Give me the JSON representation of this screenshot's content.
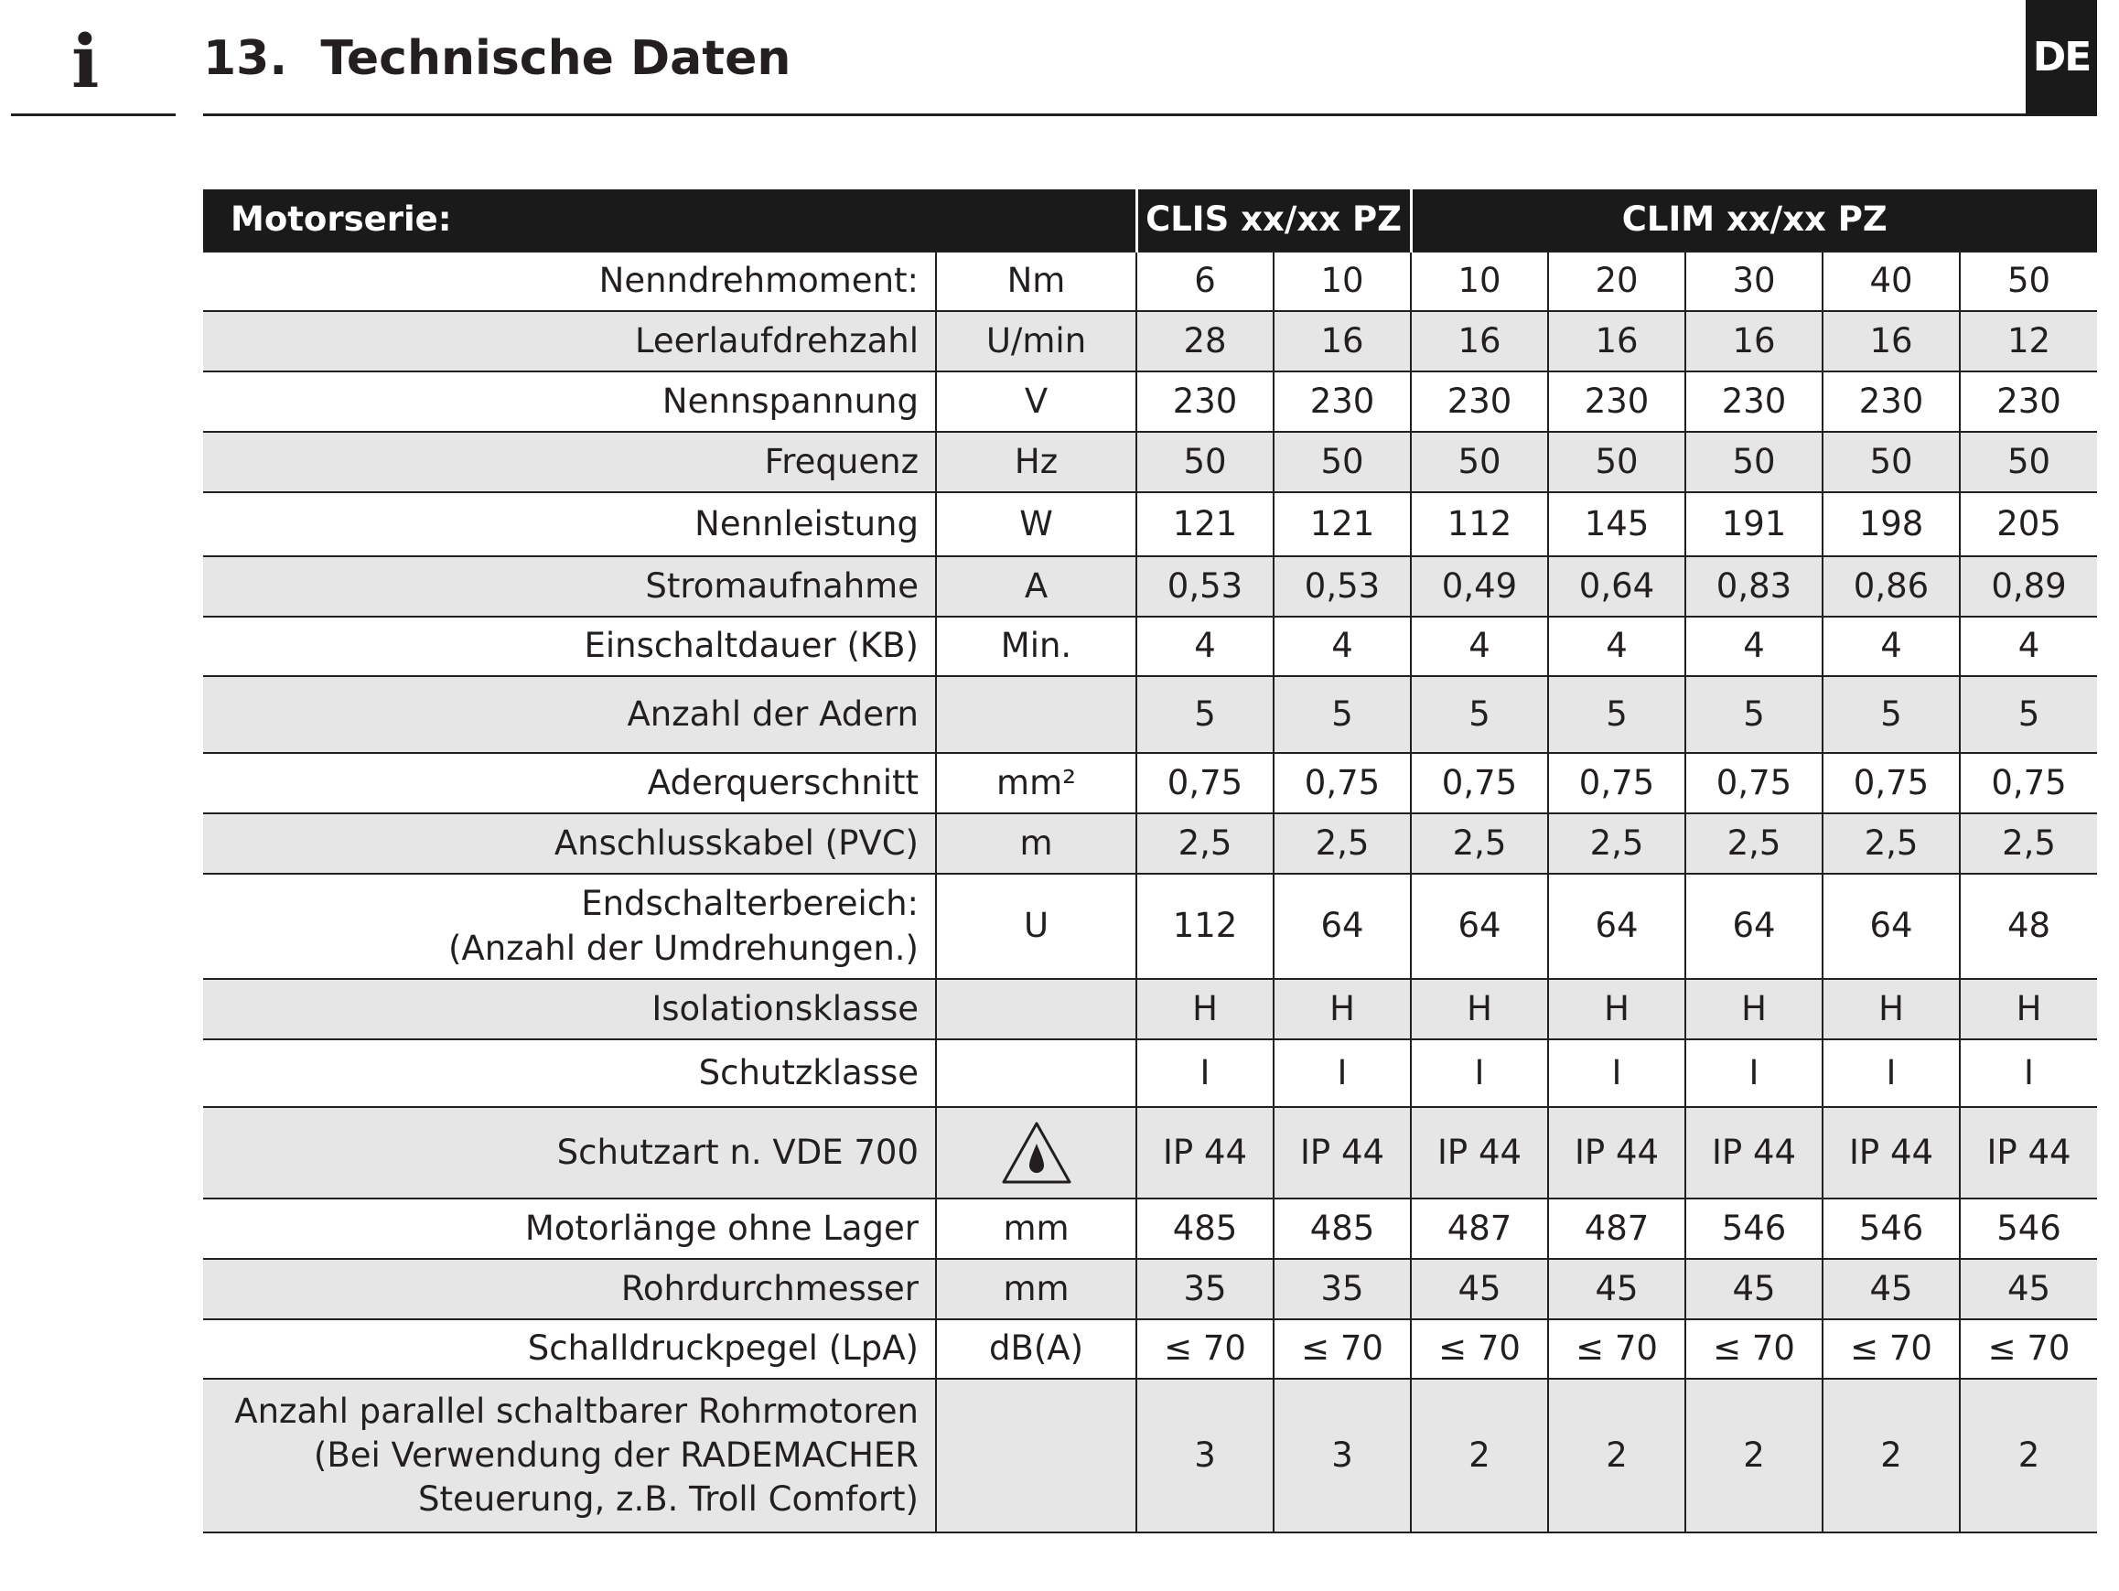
{
  "header": {
    "icon": "i",
    "title": "13.  Technische Daten",
    "language": "DE"
  },
  "table": {
    "header": [
      "Motorserie:",
      "CLIS xx/xx PZ",
      "CLIM xx/xx PZ"
    ],
    "rows": [
      [
        "Nenndrehmoment:",
        "Nm",
        "6",
        "10",
        "10",
        "20",
        "30",
        "40",
        "50"
      ],
      [
        "Leerlaufdrehzahl",
        "U/min",
        "28",
        "16",
        "16",
        "16",
        "16",
        "16",
        "12"
      ],
      [
        "Nennspannung",
        "V",
        "230",
        "230",
        "230",
        "230",
        "230",
        "230",
        "230"
      ],
      [
        "Frequenz",
        "Hz",
        "50",
        "50",
        "50",
        "50",
        "50",
        "50",
        "50"
      ],
      [
        "Nennleistung",
        "W",
        "121",
        "121",
        "112",
        "145",
        "191",
        "198",
        "205"
      ],
      [
        "Stromaufnahme",
        "A",
        "0,53",
        "0,53",
        "0,49",
        "0,64",
        "0,83",
        "0,86",
        "0,89"
      ],
      [
        "Einschaltdauer (KB)",
        "Min.",
        "4",
        "4",
        "4",
        "4",
        "4",
        "4",
        "4"
      ],
      [
        "Anzahl der Adern",
        null,
        "5",
        "5",
        "5",
        "5",
        "5",
        "5",
        "5"
      ],
      [
        "Aderquerschnitt",
        "mm²",
        "0,75",
        "0,75",
        "0,75",
        "0,75",
        "0,75",
        "0,75",
        "0,75"
      ],
      [
        "Anschlusskabel (PVC)",
        "m",
        "2,5",
        "2,5",
        "2,5",
        "2,5",
        "2,5",
        "2,5",
        "2,5"
      ],
      [
        "Endschalterbereich:\n(Anzahl der Umdrehungen.)",
        "U",
        "112",
        "64",
        "64",
        "64",
        "64",
        "64",
        "48"
      ],
      [
        "Isolationsklasse",
        null,
        "H",
        "H",
        "H",
        "H",
        "H",
        "H",
        "H"
      ],
      [
        "Schutzklasse",
        null,
        "I",
        "I",
        "I",
        "I",
        "I",
        "I",
        "I"
      ],
      [
        "Schutzart n. VDE 700",
        null,
        "IP 44",
        "IP 44",
        "IP 44",
        "IP 44",
        "IP 44",
        "IP 44",
        "IP 44"
      ],
      [
        "Motorlänge ohne Lager",
        "mm",
        "485",
        "485",
        "487",
        "487",
        "546",
        "546",
        "546"
      ],
      [
        "Rohrdurchmesser",
        "mm",
        "35",
        "35",
        "45",
        "45",
        "45",
        "45",
        "45"
      ],
      [
        "Schalldruckpegel (LpA)",
        "dB(A)",
        "≤ 70",
        "≤ 70",
        "≤ 70",
        "≤ 70",
        "≤ 70",
        "≤ 70",
        "≤ 70"
      ],
      [
        "Anzahl parallel schaltbarer Rohrmotoren\n(Bei Verwendung der RADEMACHER\nSteuerung, z.B. Troll Comfort)",
        null,
        "3",
        "3",
        "2",
        "2",
        "2",
        "2",
        "2"
      ]
    ]
  }
}
